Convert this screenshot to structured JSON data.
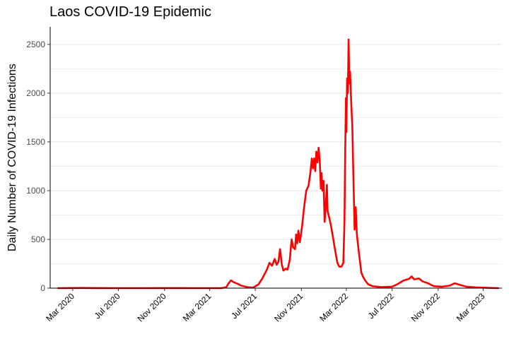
{
  "chart_data": {
    "type": "line",
    "title": "Laos COVID-19 Epidemic",
    "xlabel": "",
    "ylabel": "Daily Number of COVID-19 Infections",
    "ylim": [
      0,
      2680
    ],
    "xlim": [
      "2020-01-01",
      "2023-04-20"
    ],
    "grid": true,
    "legend": "none",
    "y_ticks": [
      0,
      500,
      1000,
      1500,
      2000,
      2500
    ],
    "x_ticks": [
      {
        "date": "2020-03-01",
        "label": "Mar 2020"
      },
      {
        "date": "2020-07-01",
        "label": "Jul 2020"
      },
      {
        "date": "2020-11-01",
        "label": "Nov 2020"
      },
      {
        "date": "2021-03-01",
        "label": "Mar 2021"
      },
      {
        "date": "2021-07-01",
        "label": "Jul 2021"
      },
      {
        "date": "2021-11-01",
        "label": "Nov 2021"
      },
      {
        "date": "2022-03-01",
        "label": "Mar 2022"
      },
      {
        "date": "2022-07-01",
        "label": "Jul 2022"
      },
      {
        "date": "2022-11-01",
        "label": "Nov 2022"
      },
      {
        "date": "2023-03-01",
        "label": "Mar 2023"
      }
    ],
    "series": [
      {
        "color": "#ff0000",
        "points": [
          [
            "2020-01-22",
            0
          ],
          [
            "2020-03-25",
            2
          ],
          [
            "2020-05-01",
            1
          ],
          [
            "2020-08-01",
            0
          ],
          [
            "2020-11-01",
            1
          ],
          [
            "2021-02-01",
            0
          ],
          [
            "2021-04-01",
            0
          ],
          [
            "2021-04-15",
            10
          ],
          [
            "2021-04-20",
            45
          ],
          [
            "2021-04-27",
            80
          ],
          [
            "2021-05-05",
            60
          ],
          [
            "2021-05-15",
            45
          ],
          [
            "2021-05-25",
            25
          ],
          [
            "2021-06-10",
            10
          ],
          [
            "2021-06-25",
            5
          ],
          [
            "2021-07-10",
            40
          ],
          [
            "2021-07-20",
            100
          ],
          [
            "2021-08-01",
            190
          ],
          [
            "2021-08-08",
            260
          ],
          [
            "2021-08-15",
            230
          ],
          [
            "2021-08-22",
            300
          ],
          [
            "2021-08-27",
            240
          ],
          [
            "2021-09-01",
            270
          ],
          [
            "2021-09-05",
            400
          ],
          [
            "2021-09-10",
            240
          ],
          [
            "2021-09-14",
            180
          ],
          [
            "2021-09-20",
            200
          ],
          [
            "2021-09-25",
            190
          ],
          [
            "2021-10-01",
            290
          ],
          [
            "2021-10-06",
            500
          ],
          [
            "2021-10-10",
            420
          ],
          [
            "2021-10-15",
            400
          ],
          [
            "2021-10-18",
            550
          ],
          [
            "2021-10-21",
            460
          ],
          [
            "2021-10-24",
            590
          ],
          [
            "2021-10-28",
            470
          ],
          [
            "2021-11-03",
            640
          ],
          [
            "2021-11-08",
            820
          ],
          [
            "2021-11-14",
            1000
          ],
          [
            "2021-11-20",
            1050
          ],
          [
            "2021-11-25",
            1180
          ],
          [
            "2021-11-29",
            1330
          ],
          [
            "2021-12-02",
            1230
          ],
          [
            "2021-12-05",
            1330
          ],
          [
            "2021-12-08",
            1200
          ],
          [
            "2021-12-11",
            1400
          ],
          [
            "2021-12-14",
            1290
          ],
          [
            "2021-12-17",
            1440
          ],
          [
            "2021-12-20",
            1300
          ],
          [
            "2021-12-23",
            1020
          ],
          [
            "2021-12-25",
            1180
          ],
          [
            "2021-12-27",
            1000
          ],
          [
            "2021-12-30",
            1100
          ],
          [
            "2022-01-02",
            680
          ],
          [
            "2022-01-05",
            850
          ],
          [
            "2022-01-08",
            1060
          ],
          [
            "2022-01-10",
            790
          ],
          [
            "2022-01-14",
            730
          ],
          [
            "2022-01-19",
            640
          ],
          [
            "2022-01-24",
            530
          ],
          [
            "2022-01-30",
            390
          ],
          [
            "2022-02-05",
            260
          ],
          [
            "2022-02-10",
            220
          ],
          [
            "2022-02-16",
            220
          ],
          [
            "2022-02-21",
            260
          ],
          [
            "2022-02-24",
            700
          ],
          [
            "2022-02-26",
            1400
          ],
          [
            "2022-02-28",
            1950
          ],
          [
            "2022-03-01",
            1600
          ],
          [
            "2022-03-03",
            2150
          ],
          [
            "2022-03-05",
            2000
          ],
          [
            "2022-03-07",
            2550
          ],
          [
            "2022-03-09",
            2100
          ],
          [
            "2022-03-11",
            2220
          ],
          [
            "2022-03-14",
            1900
          ],
          [
            "2022-03-17",
            1650
          ],
          [
            "2022-03-20",
            1100
          ],
          [
            "2022-03-23",
            600
          ],
          [
            "2022-03-26",
            830
          ],
          [
            "2022-03-29",
            550
          ],
          [
            "2022-04-03",
            380
          ],
          [
            "2022-04-07",
            250
          ],
          [
            "2022-04-10",
            160
          ],
          [
            "2022-04-14",
            120
          ],
          [
            "2022-04-20",
            80
          ],
          [
            "2022-04-28",
            40
          ],
          [
            "2022-05-10",
            20
          ],
          [
            "2022-06-01",
            10
          ],
          [
            "2022-07-01",
            15
          ],
          [
            "2022-07-15",
            40
          ],
          [
            "2022-08-01",
            80
          ],
          [
            "2022-08-15",
            95
          ],
          [
            "2022-08-22",
            120
          ],
          [
            "2022-08-29",
            90
          ],
          [
            "2022-09-10",
            100
          ],
          [
            "2022-09-20",
            70
          ],
          [
            "2022-10-05",
            50
          ],
          [
            "2022-10-20",
            20
          ],
          [
            "2022-11-10",
            15
          ],
          [
            "2022-12-01",
            25
          ],
          [
            "2022-12-15",
            50
          ],
          [
            "2022-12-28",
            35
          ],
          [
            "2023-01-15",
            15
          ],
          [
            "2023-02-10",
            8
          ],
          [
            "2023-03-15",
            3
          ],
          [
            "2023-04-10",
            0
          ]
        ]
      }
    ]
  }
}
